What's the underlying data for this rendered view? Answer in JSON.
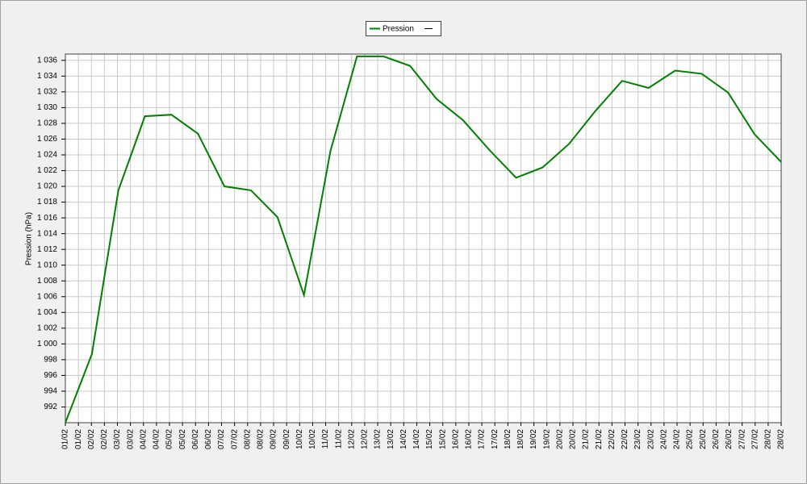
{
  "chart_data": {
    "type": "line",
    "y_label": "Pression (hPa)",
    "x": [
      "01/02",
      "02/02",
      "03/02",
      "04/02",
      "05/02",
      "06/02",
      "07/02",
      "08/02",
      "09/02",
      "10/02",
      "11/02",
      "12/02",
      "13/02",
      "14/02",
      "15/02",
      "16/02",
      "17/02",
      "18/02",
      "19/02",
      "20/02",
      "21/02",
      "22/02",
      "23/02",
      "24/02",
      "25/02",
      "26/02",
      "27/02",
      "28/02"
    ],
    "xticks": [
      "01/02",
      "01/02",
      "02/02",
      "02/02",
      "03/02",
      "03/02",
      "04/02",
      "04/02",
      "05/02",
      "05/02",
      "06/02",
      "06/02",
      "07/02",
      "07/02",
      "08/02",
      "08/02",
      "09/02",
      "09/02",
      "10/02",
      "10/02",
      "11/02",
      "11/02",
      "12/02",
      "12/02",
      "13/02",
      "13/02",
      "14/02",
      "14/02",
      "15/02",
      "15/02",
      "16/02",
      "16/02",
      "17/02",
      "17/02",
      "18/02",
      "18/02",
      "19/02",
      "19/02",
      "20/02",
      "20/02",
      "21/02",
      "21/02",
      "22/02",
      "22/02",
      "23/02",
      "23/02",
      "24/02",
      "24/02",
      "25/02",
      "25/02",
      "26/02",
      "26/02",
      "27/02",
      "27/02",
      "28/02",
      "28/02"
    ],
    "series": [
      {
        "name": "Pression",
        "color": "#008000",
        "values": [
          990.0,
          998.7,
          1019.5,
          1028.9,
          1029.1,
          1026.7,
          1020.0,
          1019.5,
          1016.1,
          1006.2,
          1024.5,
          1036.5,
          1036.5,
          1035.3,
          1031.1,
          1028.4,
          1024.6,
          1021.1,
          1022.4,
          1025.4,
          1029.6,
          1033.4,
          1032.5,
          1034.7,
          1034.3,
          1031.9,
          1026.6,
          1023.1
        ]
      }
    ],
    "ylim": [
      990,
      1036.8
    ],
    "yticks": [
      992,
      994,
      996,
      998,
      {
        "value": 1000,
        "label": "1 000"
      },
      {
        "value": 1002,
        "label": "1 002"
      },
      {
        "value": 1004,
        "label": "1 004"
      },
      {
        "value": 1006,
        "label": "1 006"
      },
      {
        "value": 1008,
        "label": "1 008"
      },
      {
        "value": 1010,
        "label": "1 010"
      },
      {
        "value": 1012,
        "label": "1 012"
      },
      {
        "value": 1014,
        "label": "1 014"
      },
      {
        "value": 1016,
        "label": "1 016"
      },
      {
        "value": 1018,
        "label": "1 018"
      },
      {
        "value": 1020,
        "label": "1 020"
      },
      {
        "value": 1022,
        "label": "1 022"
      },
      {
        "value": 1024,
        "label": "1 024"
      },
      {
        "value": 1026,
        "label": "1 026"
      },
      {
        "value": 1028,
        "label": "1 028"
      },
      {
        "value": 1030,
        "label": "1 030"
      },
      {
        "value": 1032,
        "label": "1 032"
      },
      {
        "value": 1034,
        "label": "1 034"
      },
      {
        "value": 1036,
        "label": "1 036"
      }
    ],
    "grid": true
  }
}
